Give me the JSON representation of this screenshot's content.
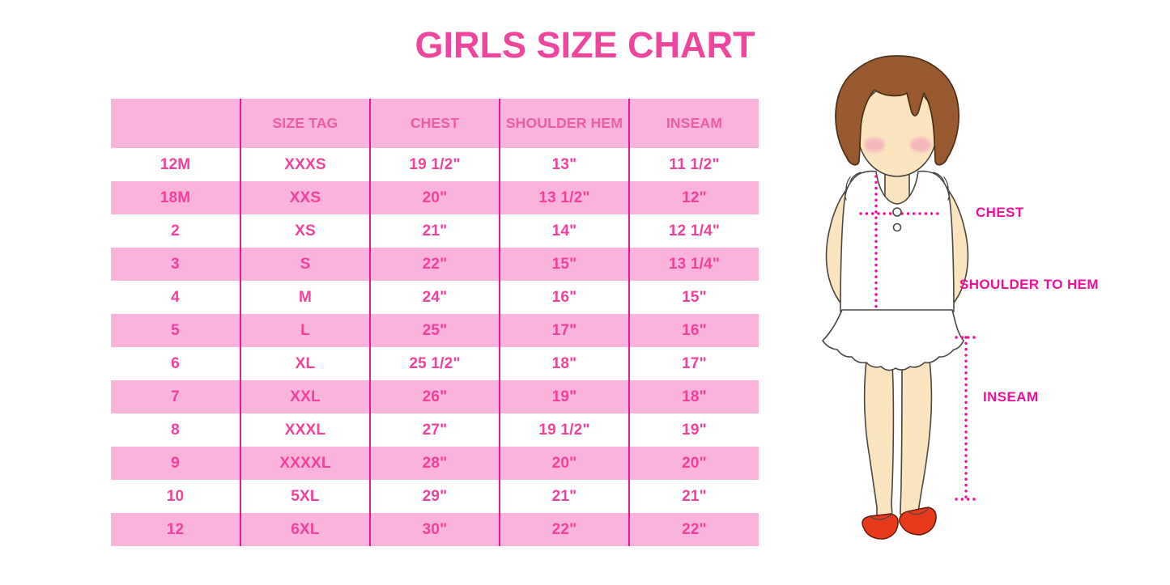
{
  "chart_data": {
    "type": "table",
    "title": "GIRLS SIZE CHART",
    "columns": [
      "",
      "SIZE TAG",
      "CHEST",
      "SHOULDER HEM",
      "INSEAM"
    ],
    "rows": [
      [
        "12M",
        "XXXS",
        "19 1/2\"",
        "13\"",
        "11 1/2\""
      ],
      [
        "18M",
        "XXS",
        "20\"",
        "13 1/2\"",
        "12\""
      ],
      [
        "2",
        "XS",
        "21\"",
        "14\"",
        "12 1/4\""
      ],
      [
        "3",
        "S",
        "22\"",
        "15\"",
        "13 1/4\""
      ],
      [
        "4",
        "M",
        "24\"",
        "16\"",
        "15\""
      ],
      [
        "5",
        "L",
        "25\"",
        "17\"",
        "16\""
      ],
      [
        "6",
        "XL",
        "25 1/2\"",
        "18\"",
        "17\""
      ],
      [
        "7",
        "XXL",
        "26\"",
        "19\"",
        "18\""
      ],
      [
        "8",
        "XXXL",
        "27\"",
        "19 1/2\"",
        "19\""
      ],
      [
        "9",
        "XXXXL",
        "28\"",
        "20\"",
        "20\""
      ],
      [
        "10",
        "5XL",
        "29\"",
        "21\"",
        "21\""
      ],
      [
        "12",
        "6XL",
        "30\"",
        "22\"",
        "22\""
      ]
    ],
    "layout": {
      "grid": "vertical-lines-only",
      "row_striping": "alternating white and pink, header pink"
    }
  },
  "figure": {
    "description": "illustrated girl with measurement guide lines",
    "labels": {
      "chest": "CHEST",
      "shoulder_to_hem": "SHOULDER TO HEM",
      "inseam": "INSEAM"
    }
  },
  "colors": {
    "title_pink": "#F0459D",
    "band_pink": "#FAB3DB",
    "grid_magenta": "#E9189B",
    "cell_text_pink": "#F2419C",
    "label_magenta": "#F20D9B",
    "hair_brown": "#9A5A31",
    "skin_tone": "#FAE5BF",
    "shoe_red": "#E8391D"
  }
}
